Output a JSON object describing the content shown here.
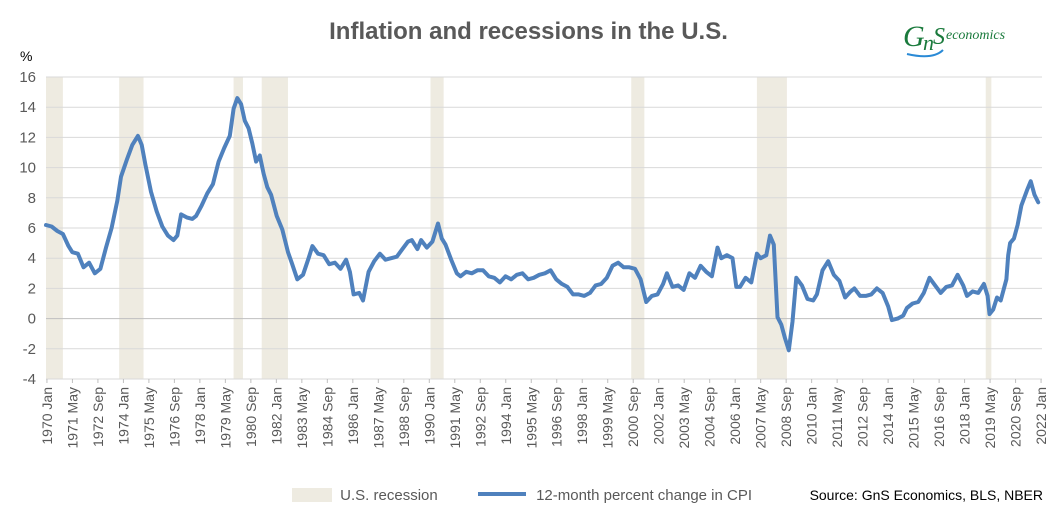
{
  "logo_text": "economics",
  "logo_icon": "gns-logo-icon",
  "source_text": "Source: GnS Economics, BLS, NBER",
  "colors": {
    "line": "#4f81bd",
    "recession": "#eeebe1",
    "grid": "#d9d9d9",
    "text": "#595959"
  },
  "chart_data": {
    "type": "line",
    "title": "Inflation and recessions in the U.S.",
    "ylabel": "%",
    "ylim": [
      -4,
      16
    ],
    "yticks": [
      -4,
      -2,
      0,
      2,
      4,
      6,
      8,
      10,
      12,
      14,
      16
    ],
    "xlim": [
      1970.0,
      2023.1
    ],
    "xtick_labels": [
      "1970 Jan",
      "1971 May",
      "1972 Sep",
      "1974 Jan",
      "1975 May",
      "1976 Sep",
      "1978 Jan",
      "1979 May",
      "1980 Sep",
      "1982 Jan",
      "1983 May",
      "1984 Sep",
      "1986 Jan",
      "1987 May",
      "1988 Sep",
      "1990 Jan",
      "1991 May",
      "1992 Sep",
      "1994 Jan",
      "1995 May",
      "1996 Sep",
      "1998 Jan",
      "1999 May",
      "2000 Sep",
      "2002 Jan",
      "2003 May",
      "2004 Sep",
      "2006 Jan",
      "2007 May",
      "2008 Sep",
      "2010 Jan",
      "2011 May",
      "2012 Sep",
      "2014 Jan",
      "2015 May",
      "2016 Sep",
      "2018 Jan",
      "2019 May",
      "2020 Sep",
      "2022 Jan"
    ],
    "recessions": [
      [
        1970.0,
        1970.9
      ],
      [
        1973.9,
        1975.2
      ],
      [
        1980.0,
        1980.5
      ],
      [
        1981.5,
        1982.9
      ],
      [
        1990.5,
        1991.2
      ],
      [
        2001.2,
        2001.9
      ],
      [
        2007.9,
        2009.5
      ],
      [
        2020.1,
        2020.4
      ]
    ],
    "legend": {
      "position": "bottom",
      "recession_label": "U.S. recession",
      "series_label": "12-month percent change in CPI"
    },
    "series": [
      {
        "name": "12-month percent change in CPI",
        "points": [
          [
            1970.0,
            6.2
          ],
          [
            1970.3,
            6.1
          ],
          [
            1970.6,
            5.8
          ],
          [
            1970.9,
            5.6
          ],
          [
            1971.2,
            4.8
          ],
          [
            1971.4,
            4.4
          ],
          [
            1971.7,
            4.3
          ],
          [
            1972.0,
            3.4
          ],
          [
            1972.3,
            3.7
          ],
          [
            1972.6,
            3.0
          ],
          [
            1972.9,
            3.3
          ],
          [
            1973.2,
            4.7
          ],
          [
            1973.5,
            6.0
          ],
          [
            1973.8,
            7.8
          ],
          [
            1974.0,
            9.4
          ],
          [
            1974.3,
            10.5
          ],
          [
            1974.6,
            11.5
          ],
          [
            1974.9,
            12.1
          ],
          [
            1975.1,
            11.5
          ],
          [
            1975.3,
            10.2
          ],
          [
            1975.6,
            8.4
          ],
          [
            1975.9,
            7.1
          ],
          [
            1976.2,
            6.1
          ],
          [
            1976.5,
            5.5
          ],
          [
            1976.8,
            5.2
          ],
          [
            1977.0,
            5.5
          ],
          [
            1977.2,
            6.9
          ],
          [
            1977.5,
            6.7
          ],
          [
            1977.8,
            6.6
          ],
          [
            1978.0,
            6.8
          ],
          [
            1978.3,
            7.5
          ],
          [
            1978.6,
            8.3
          ],
          [
            1978.9,
            8.9
          ],
          [
            1979.2,
            10.4
          ],
          [
            1979.5,
            11.3
          ],
          [
            1979.8,
            12.1
          ],
          [
            1980.0,
            13.9
          ],
          [
            1980.2,
            14.6
          ],
          [
            1980.4,
            14.2
          ],
          [
            1980.6,
            13.1
          ],
          [
            1980.8,
            12.6
          ],
          [
            1981.0,
            11.6
          ],
          [
            1981.2,
            10.4
          ],
          [
            1981.4,
            10.8
          ],
          [
            1981.6,
            9.6
          ],
          [
            1981.8,
            8.7
          ],
          [
            1982.0,
            8.2
          ],
          [
            1982.3,
            6.8
          ],
          [
            1982.6,
            5.9
          ],
          [
            1982.9,
            4.4
          ],
          [
            1983.1,
            3.7
          ],
          [
            1983.4,
            2.6
          ],
          [
            1983.7,
            2.9
          ],
          [
            1984.0,
            4.0
          ],
          [
            1984.2,
            4.8
          ],
          [
            1984.5,
            4.3
          ],
          [
            1984.8,
            4.2
          ],
          [
            1985.1,
            3.6
          ],
          [
            1985.4,
            3.7
          ],
          [
            1985.7,
            3.3
          ],
          [
            1986.0,
            3.9
          ],
          [
            1986.2,
            3.1
          ],
          [
            1986.4,
            1.6
          ],
          [
            1986.7,
            1.7
          ],
          [
            1986.9,
            1.2
          ],
          [
            1987.2,
            3.1
          ],
          [
            1987.5,
            3.8
          ],
          [
            1987.8,
            4.3
          ],
          [
            1988.1,
            3.9
          ],
          [
            1988.4,
            4.0
          ],
          [
            1988.7,
            4.1
          ],
          [
            1989.0,
            4.6
          ],
          [
            1989.3,
            5.1
          ],
          [
            1989.5,
            5.2
          ],
          [
            1989.8,
            4.6
          ],
          [
            1990.0,
            5.2
          ],
          [
            1990.3,
            4.7
          ],
          [
            1990.6,
            5.1
          ],
          [
            1990.9,
            6.3
          ],
          [
            1991.1,
            5.3
          ],
          [
            1991.3,
            4.9
          ],
          [
            1991.6,
            3.9
          ],
          [
            1991.9,
            3.0
          ],
          [
            1992.1,
            2.8
          ],
          [
            1992.4,
            3.1
          ],
          [
            1992.7,
            3.0
          ],
          [
            1993.0,
            3.2
          ],
          [
            1993.3,
            3.2
          ],
          [
            1993.6,
            2.8
          ],
          [
            1993.9,
            2.7
          ],
          [
            1994.2,
            2.4
          ],
          [
            1994.5,
            2.8
          ],
          [
            1994.8,
            2.6
          ],
          [
            1995.1,
            2.9
          ],
          [
            1995.4,
            3.0
          ],
          [
            1995.7,
            2.6
          ],
          [
            1996.0,
            2.7
          ],
          [
            1996.3,
            2.9
          ],
          [
            1996.6,
            3.0
          ],
          [
            1996.9,
            3.2
          ],
          [
            1997.2,
            2.6
          ],
          [
            1997.5,
            2.3
          ],
          [
            1997.8,
            2.1
          ],
          [
            1998.1,
            1.6
          ],
          [
            1998.4,
            1.6
          ],
          [
            1998.7,
            1.5
          ],
          [
            1999.0,
            1.7
          ],
          [
            1999.3,
            2.2
          ],
          [
            1999.6,
            2.3
          ],
          [
            1999.9,
            2.7
          ],
          [
            2000.2,
            3.5
          ],
          [
            2000.5,
            3.7
          ],
          [
            2000.8,
            3.4
          ],
          [
            2001.1,
            3.4
          ],
          [
            2001.4,
            3.3
          ],
          [
            2001.7,
            2.6
          ],
          [
            2002.0,
            1.1
          ],
          [
            2002.3,
            1.5
          ],
          [
            2002.6,
            1.6
          ],
          [
            2002.9,
            2.3
          ],
          [
            2003.1,
            3.0
          ],
          [
            2003.4,
            2.1
          ],
          [
            2003.7,
            2.2
          ],
          [
            2004.0,
            1.9
          ],
          [
            2004.3,
            3.0
          ],
          [
            2004.6,
            2.7
          ],
          [
            2004.9,
            3.5
          ],
          [
            2005.2,
            3.1
          ],
          [
            2005.5,
            2.8
          ],
          [
            2005.8,
            4.7
          ],
          [
            2006.0,
            4.0
          ],
          [
            2006.3,
            4.2
          ],
          [
            2006.6,
            4.0
          ],
          [
            2006.8,
            2.1
          ],
          [
            2007.0,
            2.1
          ],
          [
            2007.3,
            2.7
          ],
          [
            2007.6,
            2.4
          ],
          [
            2007.9,
            4.3
          ],
          [
            2008.1,
            4.0
          ],
          [
            2008.4,
            4.2
          ],
          [
            2008.6,
            5.5
          ],
          [
            2008.8,
            4.9
          ],
          [
            2009.0,
            0.1
          ],
          [
            2009.2,
            -0.4
          ],
          [
            2009.4,
            -1.3
          ],
          [
            2009.6,
            -2.1
          ],
          [
            2009.8,
            -0.2
          ],
          [
            2010.0,
            2.7
          ],
          [
            2010.3,
            2.2
          ],
          [
            2010.6,
            1.3
          ],
          [
            2010.9,
            1.2
          ],
          [
            2011.1,
            1.6
          ],
          [
            2011.4,
            3.2
          ],
          [
            2011.7,
            3.8
          ],
          [
            2012.0,
            2.9
          ],
          [
            2012.3,
            2.5
          ],
          [
            2012.6,
            1.4
          ],
          [
            2012.9,
            1.8
          ],
          [
            2013.1,
            2.0
          ],
          [
            2013.4,
            1.5
          ],
          [
            2013.7,
            1.5
          ],
          [
            2014.0,
            1.6
          ],
          [
            2014.3,
            2.0
          ],
          [
            2014.6,
            1.7
          ],
          [
            2014.9,
            0.8
          ],
          [
            2015.1,
            -0.1
          ],
          [
            2015.4,
            0.0
          ],
          [
            2015.7,
            0.2
          ],
          [
            2015.9,
            0.7
          ],
          [
            2016.2,
            1.0
          ],
          [
            2016.5,
            1.1
          ],
          [
            2016.8,
            1.7
          ],
          [
            2017.1,
            2.7
          ],
          [
            2017.4,
            2.2
          ],
          [
            2017.7,
            1.7
          ],
          [
            2018.0,
            2.1
          ],
          [
            2018.3,
            2.2
          ],
          [
            2018.6,
            2.9
          ],
          [
            2018.9,
            2.2
          ],
          [
            2019.1,
            1.5
          ],
          [
            2019.4,
            1.8
          ],
          [
            2019.7,
            1.7
          ],
          [
            2020.0,
            2.3
          ],
          [
            2020.2,
            1.5
          ],
          [
            2020.3,
            0.3
          ],
          [
            2020.5,
            0.6
          ],
          [
            2020.7,
            1.4
          ],
          [
            2020.9,
            1.2
          ],
          [
            2021.2,
            2.6
          ],
          [
            2021.3,
            4.2
          ],
          [
            2021.4,
            5.0
          ],
          [
            2021.6,
            5.3
          ],
          [
            2021.8,
            6.2
          ],
          [
            2022.0,
            7.5
          ],
          [
            2022.3,
            8.5
          ],
          [
            2022.5,
            9.1
          ],
          [
            2022.7,
            8.2
          ],
          [
            2022.9,
            7.7
          ]
        ]
      }
    ]
  }
}
